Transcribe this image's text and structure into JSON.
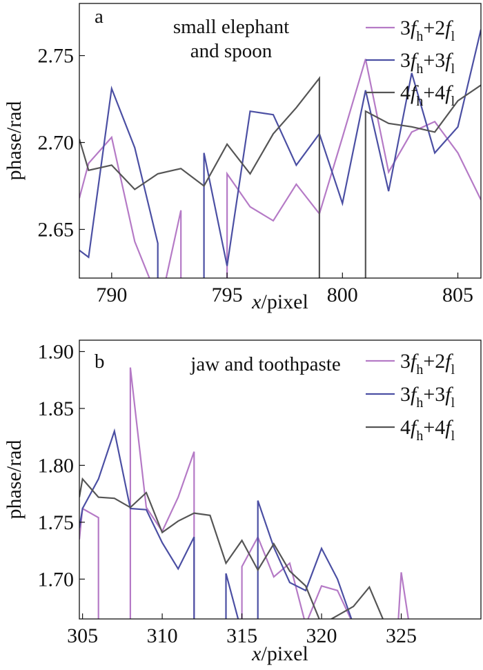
{
  "chart_data": [
    {
      "type": "line",
      "panel_letter": "a",
      "annotation": [
        "small elephant",
        "and spoon"
      ],
      "xlabel": "x/pixel",
      "ylabel": "phase/rad",
      "xlim": [
        788.6,
        806
      ],
      "ylim": [
        2.622,
        2.78
      ],
      "xticks": [
        790,
        795,
        800,
        805
      ],
      "yticks": [
        2.65,
        2.7,
        2.75
      ],
      "ytick_labels": [
        "2.65",
        "2.70",
        "2.75"
      ],
      "legend_position": "top-right",
      "series": [
        {
          "name": "3f_h+2f_l",
          "color": "#b57ac6",
          "x": [
            788.6,
            789,
            790,
            791,
            792,
            792,
            793,
            793,
            794,
            794,
            795,
            795,
            796,
            797,
            798,
            799,
            800,
            801,
            802,
            803,
            804,
            805,
            806
          ],
          "y": [
            2.668,
            2.688,
            2.703,
            2.643,
            2.61,
            2.6,
            2.661,
            2.6,
            2.6,
            2.6,
            2.6,
            2.682,
            2.663,
            2.655,
            2.676,
            2.659,
            2.703,
            2.748,
            2.683,
            2.706,
            2.712,
            2.694,
            2.667
          ]
        },
        {
          "name": "3f_h+3f_l",
          "color": "#4b4fa3",
          "x": [
            788.6,
            789,
            790,
            791,
            792,
            792,
            794,
            794,
            795,
            796,
            797,
            798,
            799,
            800,
            801,
            802,
            803,
            804,
            805,
            806
          ],
          "y": [
            2.638,
            2.634,
            2.731,
            2.697,
            2.642,
            2.6,
            2.6,
            2.694,
            2.629,
            2.718,
            2.716,
            2.687,
            2.705,
            2.665,
            2.73,
            2.672,
            2.74,
            2.694,
            2.709,
            2.765
          ]
        },
        {
          "name": "4f_h+4f_l",
          "color": "#555555",
          "x": [
            788.6,
            789,
            790,
            791,
            792,
            793,
            794,
            795,
            796,
            797,
            798,
            799,
            799,
            801,
            801,
            802,
            803,
            804,
            805,
            806
          ],
          "y": [
            2.702,
            2.684,
            2.687,
            2.673,
            2.682,
            2.685,
            2.675,
            2.699,
            2.682,
            2.705,
            2.72,
            2.737,
            2.6,
            2.6,
            2.718,
            2.711,
            2.709,
            2.706,
            2.724,
            2.733
          ]
        }
      ]
    },
    {
      "type": "line",
      "panel_letter": "b",
      "annotation": [
        "jaw and toothpaste"
      ],
      "xlabel": "x/pixel",
      "ylabel": "phase/rad",
      "xlim": [
        304.8,
        330
      ],
      "ylim": [
        1.665,
        1.91
      ],
      "xticks": [
        305,
        310,
        315,
        320,
        325
      ],
      "yticks": [
        1.7,
        1.75,
        1.8,
        1.85,
        1.9
      ],
      "ytick_labels": [
        "1.70",
        "1.75",
        "1.80",
        "1.85",
        "1.90"
      ],
      "legend_position": "top-right",
      "series": [
        {
          "name": "3f_h+2f_l",
          "color": "#b57ac6",
          "x": [
            304.8,
            305,
            306,
            306,
            308,
            308,
            309,
            310,
            311,
            312,
            312,
            315,
            315,
            316,
            317,
            318,
            319,
            320,
            321,
            322,
            324.8,
            325,
            325.5
          ],
          "y": [
            1.735,
            1.762,
            1.754,
            1.6,
            1.6,
            1.886,
            1.763,
            1.742,
            1.772,
            1.812,
            1.6,
            1.6,
            1.711,
            1.737,
            1.702,
            1.714,
            1.66,
            1.694,
            1.69,
            1.66,
            1.66,
            1.706,
            1.66
          ]
        },
        {
          "name": "3f_h+3f_l",
          "color": "#4b4fa3",
          "x": [
            304.8,
            305,
            306,
            307,
            308,
            309,
            310,
            311,
            312,
            312,
            314,
            314,
            316,
            316,
            317,
            318,
            319,
            320,
            321,
            322
          ],
          "y": [
            1.745,
            1.762,
            1.788,
            1.83,
            1.762,
            1.761,
            1.732,
            1.709,
            1.737,
            1.6,
            1.6,
            1.705,
            1.6,
            1.769,
            1.728,
            1.697,
            1.69,
            1.727,
            1.7,
            1.66
          ]
        },
        {
          "name": "4f_h+4f_l",
          "color": "#555555",
          "x": [
            304.8,
            305,
            306,
            307,
            308,
            309,
            310,
            311,
            312,
            313,
            314,
            315,
            316,
            317,
            318,
            319,
            320,
            322,
            323,
            324
          ],
          "y": [
            1.772,
            1.788,
            1.772,
            1.771,
            1.763,
            1.776,
            1.741,
            1.751,
            1.758,
            1.756,
            1.714,
            1.734,
            1.708,
            1.731,
            1.707,
            1.694,
            1.66,
            1.676,
            1.693,
            1.66
          ]
        }
      ]
    }
  ]
}
